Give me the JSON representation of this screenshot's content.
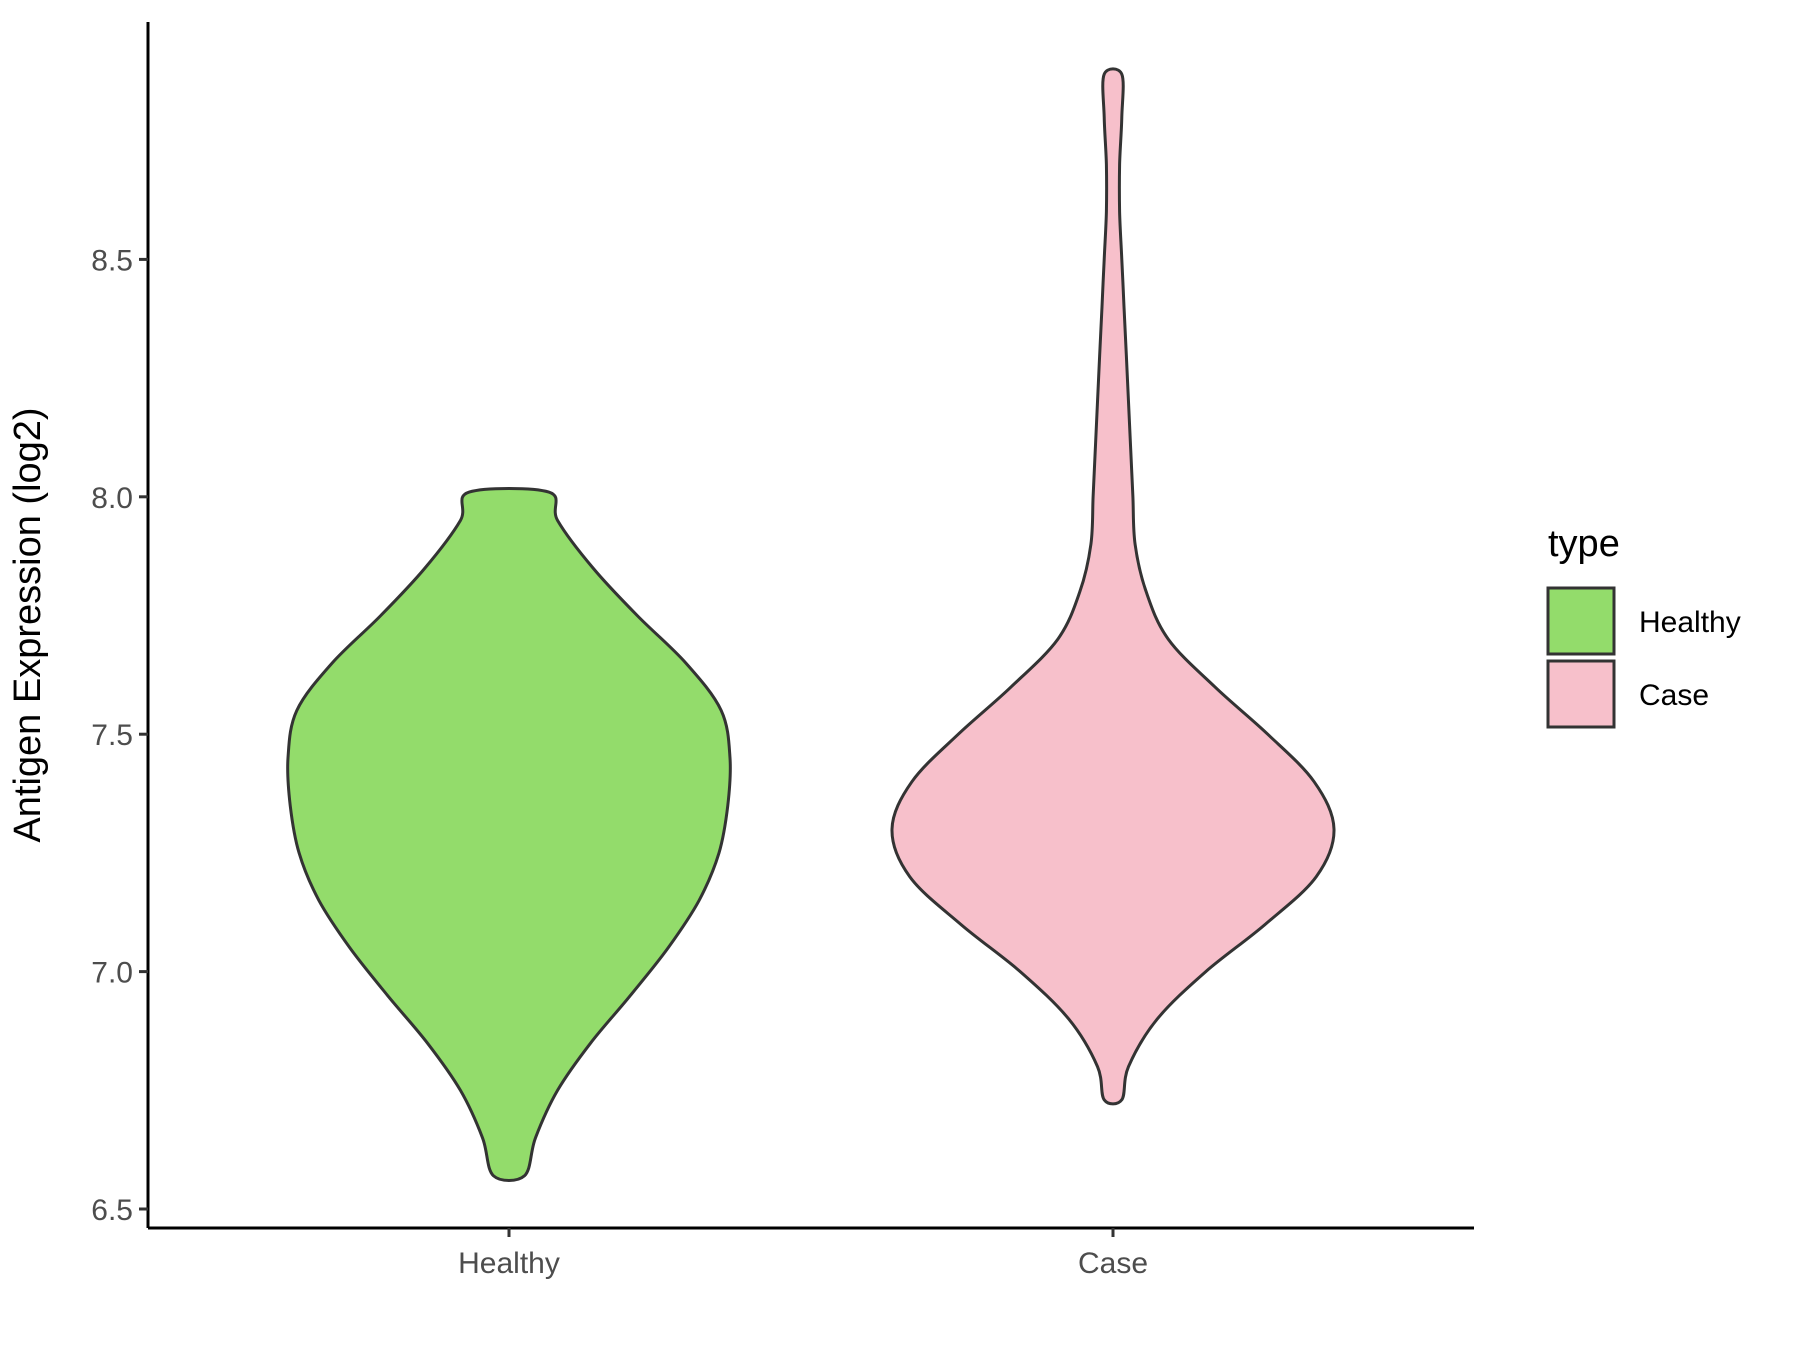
{
  "chart_data": {
    "type": "violin",
    "title": "",
    "xlabel": "",
    "ylabel": "Antigen Expression (log2)",
    "ylim": [
      6.46,
      9.0
    ],
    "yticks": [
      "6.5",
      "7.0",
      "7.5",
      "8.0",
      "8.5"
    ],
    "categories": [
      "Healthy",
      "Case"
    ],
    "grid": false,
    "legend": {
      "title": "type",
      "position": "right",
      "items": [
        {
          "label": "Healthy",
          "color": "#93dc6b"
        },
        {
          "label": "Case",
          "color": "#f7c0cb"
        }
      ]
    },
    "series": [
      {
        "name": "Healthy",
        "color": "#93dc6b",
        "min": 6.57,
        "max": 8.01,
        "density_profile": [
          [
            6.57,
            0.07
          ],
          [
            6.65,
            0.12
          ],
          [
            6.75,
            0.22
          ],
          [
            6.85,
            0.37
          ],
          [
            6.95,
            0.55
          ],
          [
            7.05,
            0.72
          ],
          [
            7.15,
            0.86
          ],
          [
            7.25,
            0.95
          ],
          [
            7.35,
            0.99
          ],
          [
            7.45,
            1.0
          ],
          [
            7.55,
            0.96
          ],
          [
            7.65,
            0.8
          ],
          [
            7.75,
            0.58
          ],
          [
            7.85,
            0.38
          ],
          [
            7.95,
            0.22
          ],
          [
            8.01,
            0.18
          ]
        ]
      },
      {
        "name": "Case",
        "color": "#f7c0cb",
        "min": 6.73,
        "max": 8.89,
        "density_profile": [
          [
            6.73,
            0.04
          ],
          [
            6.8,
            0.07
          ],
          [
            6.9,
            0.2
          ],
          [
            7.0,
            0.42
          ],
          [
            7.1,
            0.69
          ],
          [
            7.2,
            0.92
          ],
          [
            7.3,
            1.0
          ],
          [
            7.4,
            0.91
          ],
          [
            7.5,
            0.7
          ],
          [
            7.6,
            0.46
          ],
          [
            7.7,
            0.25
          ],
          [
            7.8,
            0.15
          ],
          [
            7.9,
            0.1
          ],
          [
            8.0,
            0.09
          ],
          [
            8.1,
            0.08
          ],
          [
            8.2,
            0.07
          ],
          [
            8.3,
            0.06
          ],
          [
            8.4,
            0.05
          ],
          [
            8.5,
            0.04
          ],
          [
            8.6,
            0.03
          ],
          [
            8.7,
            0.03
          ],
          [
            8.8,
            0.04
          ],
          [
            8.89,
            0.04
          ]
        ]
      }
    ]
  }
}
